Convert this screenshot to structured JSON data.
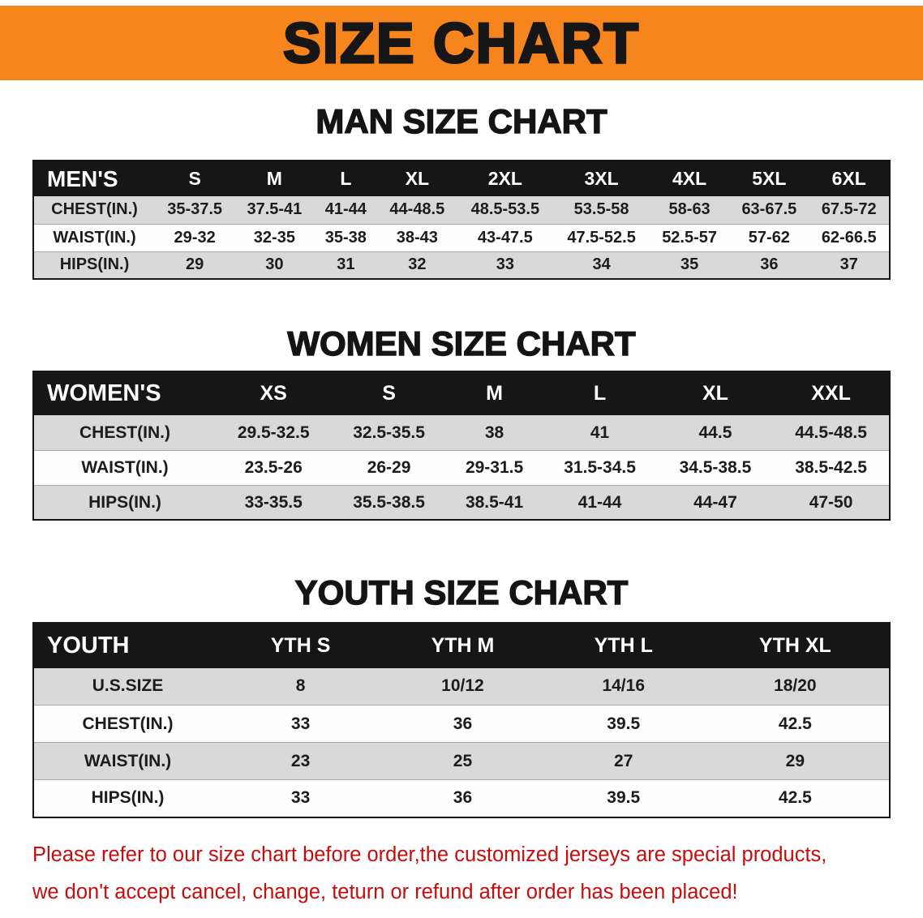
{
  "banner": {
    "title": "SIZE CHART"
  },
  "sections": [
    {
      "heading": "MAN SIZE CHART",
      "table": {
        "header": [
          "MEN'S",
          "S",
          "M",
          "L",
          "XL",
          "2XL",
          "3XL",
          "4XL",
          "5XL",
          "6XL"
        ],
        "rows": [
          {
            "label": "CHEST(IN.)",
            "values": [
              "35-37.5",
              "37.5-41",
              "41-44",
              "44-48.5",
              "48.5-53.5",
              "53.5-58",
              "58-63",
              "63-67.5",
              "67.5-72"
            ]
          },
          {
            "label": "WAIST(IN.)",
            "values": [
              "29-32",
              "32-35",
              "35-38",
              "38-43",
              "43-47.5",
              "47.5-52.5",
              "52.5-57",
              "57-62",
              "62-66.5"
            ]
          },
          {
            "label": "HIPS(IN.)",
            "values": [
              "29",
              "30",
              "31",
              "32",
              "33",
              "34",
              "35",
              "36",
              "37"
            ]
          }
        ]
      }
    },
    {
      "heading": "WOMEN SIZE CHART",
      "table": {
        "header": [
          "WOMEN'S",
          "XS",
          "S",
          "M",
          "L",
          "XL",
          "XXL"
        ],
        "rows": [
          {
            "label": "CHEST(IN.)",
            "values": [
              "29.5-32.5",
              "32.5-35.5",
              "38",
              "41",
              "44.5",
              "44.5-48.5"
            ]
          },
          {
            "label": "WAIST(IN.)",
            "values": [
              "23.5-26",
              "26-29",
              "29-31.5",
              "31.5-34.5",
              "34.5-38.5",
              "38.5-42.5"
            ]
          },
          {
            "label": "HIPS(IN.)",
            "values": [
              "33-35.5",
              "35.5-38.5",
              "38.5-41",
              "41-44",
              "44-47",
              "47-50"
            ]
          }
        ]
      }
    },
    {
      "heading": "YOUTH SIZE CHART",
      "table": {
        "header": [
          "YOUTH",
          "YTH S",
          "YTH M",
          "YTH L",
          "YTH XL"
        ],
        "rows": [
          {
            "label": "U.S.SIZE",
            "values": [
              "8",
              "10/12",
              "14/16",
              "18/20"
            ]
          },
          {
            "label": "CHEST(IN.)",
            "values": [
              "33",
              "36",
              "39.5",
              "42.5"
            ]
          },
          {
            "label": "WAIST(IN.)",
            "values": [
              "23",
              "25",
              "27",
              "29"
            ]
          },
          {
            "label": "HIPS(IN.)",
            "values": [
              "33",
              "36",
              "39.5",
              "42.5"
            ]
          }
        ]
      }
    }
  ],
  "disclaimer": {
    "line1": "Please refer to our size chart before order,the customized jerseys are special products,",
    "line2": "we don't accept cancel, change, teturn or refund after order has been placed!"
  },
  "colors": {
    "banner_bg": "#f6851d",
    "header_bg": "#161616",
    "row_alt_bg": "#d9d9d9",
    "disclaimer_red": "#c40d0d"
  }
}
